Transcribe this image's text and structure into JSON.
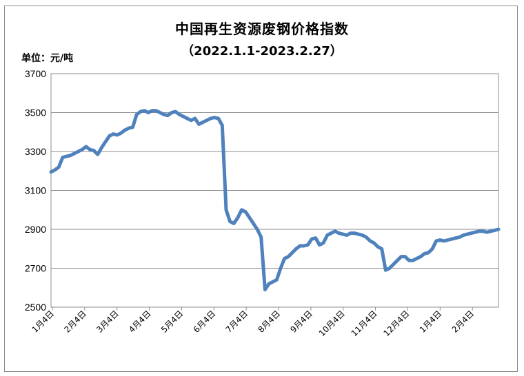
{
  "chart_data": {
    "type": "line",
    "title": "中国再生资源废钢价格指数",
    "subtitle": "（2022.1.1-2023.2.27）",
    "unit_label": "单位：元/吨",
    "ylim": [
      2500,
      3700
    ],
    "yticks": [
      2500,
      2700,
      2900,
      3100,
      3300,
      3500,
      3700
    ],
    "xlabels": [
      "1月4日",
      "2月4日",
      "3月4日",
      "4月4日",
      "5月4日",
      "6月4日",
      "7月4日",
      "8月4日",
      "9月4日",
      "10月4日",
      "11月4日",
      "12月4日",
      "1月4日",
      "2月4日"
    ],
    "grid": true,
    "series_color": "#4f81bd",
    "series": [
      {
        "values": [
          3195,
          3205,
          3220,
          3270,
          3275,
          3280,
          3290,
          3300,
          3310,
          3325,
          3310,
          3305,
          3285,
          3320,
          3350,
          3380,
          3390,
          3385,
          3395,
          3410,
          3420,
          3425,
          3490,
          3505,
          3510,
          3500,
          3510,
          3510,
          3500,
          3490,
          3485,
          3500,
          3505,
          3490,
          3480,
          3470,
          3460,
          3470,
          3440,
          3450,
          3460,
          3470,
          3475,
          3470,
          3435,
          3000,
          2940,
          2930,
          2960,
          3000,
          2990,
          2960,
          2930,
          2900,
          2860,
          2590,
          2620,
          2630,
          2640,
          2700,
          2750,
          2760,
          2780,
          2800,
          2815,
          2815,
          2820,
          2850,
          2855,
          2820,
          2830,
          2870,
          2880,
          2890,
          2880,
          2875,
          2870,
          2880,
          2880,
          2875,
          2870,
          2860,
          2840,
          2830,
          2810,
          2800,
          2690,
          2700,
          2720,
          2740,
          2760,
          2760,
          2740,
          2740,
          2750,
          2760,
          2775,
          2780,
          2800,
          2840,
          2845,
          2840,
          2845,
          2850,
          2855,
          2860,
          2870,
          2875,
          2880,
          2885,
          2890,
          2890,
          2885,
          2890,
          2895,
          2900
        ]
      }
    ]
  }
}
